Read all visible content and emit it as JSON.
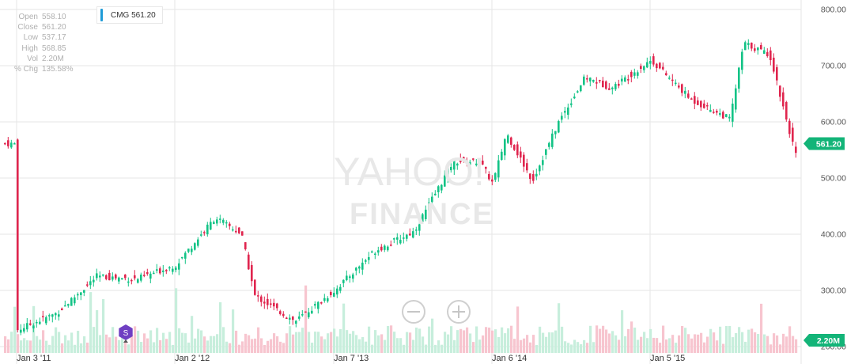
{
  "ohlc_panel": {
    "rows": [
      {
        "label": "Open",
        "value": "558.10"
      },
      {
        "label": "Close",
        "value": "561.20"
      },
      {
        "label": "Low",
        "value": "537.17"
      },
      {
        "label": "High",
        "value": "568.85"
      },
      {
        "label": "Vol",
        "value": "2.20M"
      },
      {
        "label": "% Chg",
        "value": "135.58%"
      }
    ]
  },
  "legend": {
    "symbol_label": "CMG 561.20",
    "color": "#1e9bd7"
  },
  "watermark": {
    "line1": "YAHOO!",
    "line2": "FINANCE"
  },
  "event_marker": {
    "label": "S",
    "color": "#6f3fc2"
  },
  "price_badge": {
    "label": "561.20",
    "value": 561.2,
    "color": "#13b478"
  },
  "volume_badge": {
    "label": "2.20M",
    "color": "#13b478"
  },
  "colors": {
    "up": "#13c386",
    "down": "#e0254e",
    "vol_up": "#c7eedc",
    "vol_down": "#f7c5cf",
    "grid": "#e6e6e6"
  },
  "chart_data": {
    "type": "candlestick",
    "y_ticks": [
      "800.00",
      "700.00",
      "600.00",
      "500.00",
      "400.00",
      "300.00",
      "200.00"
    ],
    "ylim": [
      200,
      800
    ],
    "x_ticks": [
      "Jan 3 '11",
      "Jan 2 '12",
      "Jan 7 '13",
      "Jan 6 '14",
      "Jan 5 '15"
    ],
    "close_series": [
      {
        "x": "Jan 3 '11",
        "close": 230
      },
      {
        "x": "Apr '11",
        "close": 260
      },
      {
        "x": "Jul '11",
        "close": 325
      },
      {
        "x": "Oct '11",
        "close": 320
      },
      {
        "x": "Jan 2 '12",
        "close": 345
      },
      {
        "x": "Apr '12",
        "close": 430
      },
      {
        "x": "Jun '12",
        "close": 400
      },
      {
        "x": "Jul '12",
        "close": 290
      },
      {
        "x": "Oct '12",
        "close": 245
      },
      {
        "x": "Jan 7 '13",
        "close": 300
      },
      {
        "x": "Apr '13",
        "close": 370
      },
      {
        "x": "Jul '13",
        "close": 405
      },
      {
        "x": "Oct '13",
        "close": 530
      },
      {
        "x": "Dec '13",
        "close": 530
      },
      {
        "x": "Jan 6 '14",
        "close": 490
      },
      {
        "x": "Feb '14",
        "close": 580
      },
      {
        "x": "Apr '14",
        "close": 495
      },
      {
        "x": "Jun '14",
        "close": 600
      },
      {
        "x": "Aug '14",
        "close": 680
      },
      {
        "x": "Oct '14",
        "close": 660
      },
      {
        "x": "Jan 5 '15",
        "close": 710
      },
      {
        "x": "Apr '15",
        "close": 640
      },
      {
        "x": "Jul '15",
        "close": 605
      },
      {
        "x": "Aug '15",
        "close": 740
      },
      {
        "x": "Oct '15",
        "close": 720
      },
      {
        "x": "Dec '15",
        "close": 540
      },
      {
        "x": "Jan '16",
        "close": 561.2
      }
    ],
    "last_close": 561.2,
    "last_volume": "2.20M"
  }
}
